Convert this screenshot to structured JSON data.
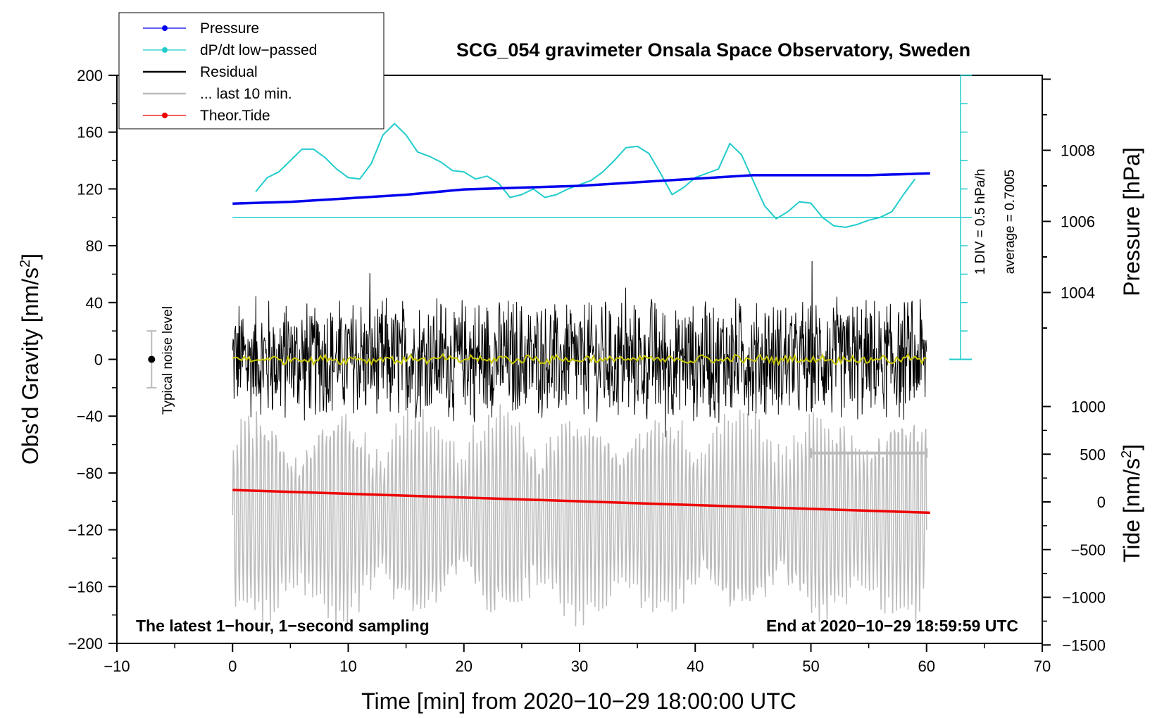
{
  "chart_data": {
    "type": "line",
    "title": "SCG_054 gravimeter Onsala Space Observatory, Sweden",
    "xlabel": "Time [min] from 2020−10−29 18:00:00 UTC",
    "ylabel_left": "Obs'd Gravity [nm/s",
    "ylabel_left_sup": "2",
    "ylabel_left_end": "]",
    "ylabel_right_pressure": "Pressure [hPa]",
    "ylabel_right_tide": "Tide [nm/s",
    "ylabel_right_tide_sup": "2",
    "ylabel_right_tide_end": "]",
    "xlim": [
      -10,
      70
    ],
    "ylim": [
      -200,
      200
    ],
    "xticks": [
      "−10",
      "0",
      "10",
      "20",
      "30",
      "40",
      "50",
      "60",
      "70"
    ],
    "yticks_left": [
      "200",
      "160",
      "120",
      "80",
      "40",
      "0",
      "−40",
      "−80",
      "−120",
      "−160",
      "−200"
    ],
    "pressure_range": [
      1003,
      1010
    ],
    "pressure_ticks": [
      "1008",
      "1006",
      "1004"
    ],
    "tide_range": [
      -1500,
      1500
    ],
    "tide_ticks": [
      "1000",
      "500",
      "0",
      "−500",
      "−1000",
      "−1500"
    ],
    "annotation_left": "The latest 1−hour, 1−second sampling",
    "annotation_right": "End at 2020−10−29 18:59:59 UTC",
    "noise_label": "Typical noise level",
    "noise_level": [
      -20,
      20
    ],
    "div_label": "1 DIV = 0.5 hPa/h",
    "avg_label": "average = 0.7005",
    "dpdt_baseline_gravity": 100,
    "last10_marker": [
      50,
      60
    ],
    "legend": [
      {
        "label": "Pressure",
        "color": "#0000ee",
        "marker": true
      },
      {
        "label": "dP/dt low−passed",
        "color": "#22cccc",
        "marker": true
      },
      {
        "label": "Residual",
        "color": "#000000",
        "marker": false
      },
      {
        "label": "... last 10 min.",
        "color": "#bbbbbb",
        "marker": false
      },
      {
        "label": "Theor.Tide",
        "color": "#ee0000",
        "marker": true
      }
    ],
    "series": [
      {
        "name": "Pressure",
        "unit": "hPa",
        "x": [
          0,
          5,
          10,
          15,
          20,
          25,
          30,
          35,
          40,
          45,
          50,
          55,
          60.3
        ],
        "values": [
          1006.5,
          1006.55,
          1006.65,
          1006.75,
          1006.9,
          1006.95,
          1007.0,
          1007.1,
          1007.2,
          1007.3,
          1007.3,
          1007.3,
          1007.35
        ]
      },
      {
        "name": "dP/dt low−passed",
        "unit": "nm/s2 plot scale",
        "x": [
          2,
          3,
          4,
          5,
          6,
          7,
          8,
          9,
          10,
          11,
          12,
          13,
          14,
          15,
          16,
          17,
          18,
          19,
          20,
          21,
          22,
          23,
          24,
          25,
          26,
          27,
          28,
          29,
          30,
          31,
          32,
          33,
          34,
          35,
          36,
          37,
          38,
          39,
          40,
          41,
          42,
          43,
          44,
          45,
          46,
          47,
          48,
          49,
          50,
          51,
          52,
          53,
          54,
          55,
          56,
          57,
          58,
          59
        ],
        "values": [
          118,
          128,
          132,
          140,
          148,
          148,
          142,
          134,
          128,
          127,
          138,
          158,
          166,
          158,
          146,
          143,
          139,
          133,
          132,
          127,
          129,
          124,
          114,
          116,
          120,
          114,
          116,
          120,
          123,
          126,
          132,
          140,
          149,
          150,
          145,
          131,
          116,
          121,
          128,
          131,
          134,
          152,
          144,
          126,
          108,
          99,
          104,
          111,
          110,
          100,
          94,
          93,
          95,
          98,
          100,
          104,
          116,
          127
        ]
      },
      {
        "name": "Residual",
        "unit": "nm/s2",
        "x_range": [
          0,
          60
        ],
        "amplitude": 45
      },
      {
        "name": "Residual low-passed",
        "unit": "nm/s2",
        "x_range": [
          0,
          60
        ],
        "values_mean": 0
      },
      {
        "name": "... last 10 min.",
        "unit": "nm/s2",
        "x_range": [
          0,
          60
        ],
        "amplitude": 70,
        "offset": -110
      },
      {
        "name": "Theor.Tide",
        "unit": "nm/s2",
        "x": [
          0,
          60.3
        ],
        "values": [
          -92,
          -108
        ]
      }
    ]
  }
}
